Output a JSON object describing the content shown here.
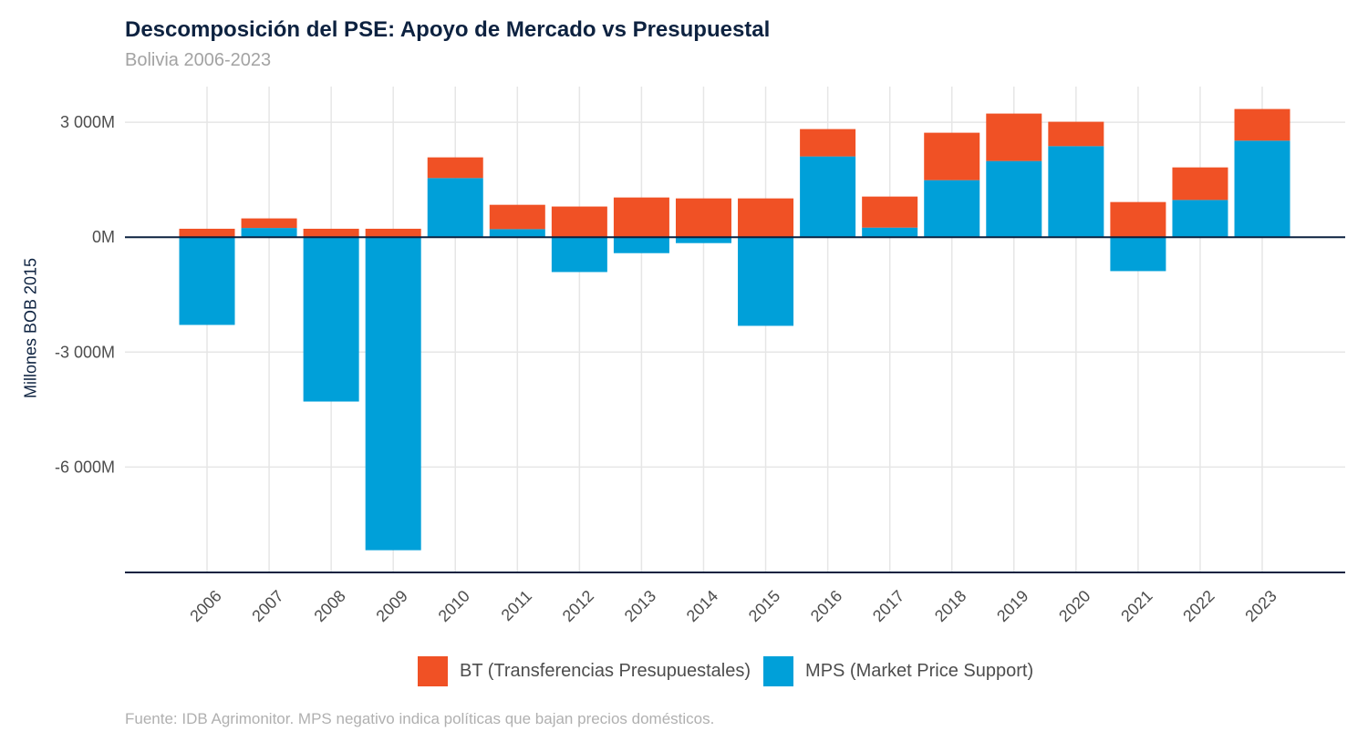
{
  "header": {
    "title": "Descomposición del PSE: Apoyo de Mercado vs Presupuestal",
    "subtitle": "Bolivia 2006-2023"
  },
  "caption": "Fuente: IDB Agrimonitor. MPS negativo indica políticas que bajan precios domésticos.",
  "colors": {
    "bt": "#f05125",
    "mps": "#00a0d9",
    "axis": "#0d2240",
    "grid": "#e6e6e6"
  },
  "chart_data": {
    "type": "bar",
    "stacked": true,
    "title": "Descomposición del PSE: Apoyo de Mercado vs Presupuestal",
    "subtitle": "Bolivia 2006-2023",
    "xlabel": "",
    "ylabel": "Millones BOB 2015",
    "ylim": [
      -8750,
      3930
    ],
    "yticks": [
      -6000,
      -3000,
      0,
      3000
    ],
    "ytick_labels": [
      "-6 000M",
      "-3 000M",
      "0M",
      "3 000M"
    ],
    "grid": true,
    "legend_position": "bottom",
    "categories": [
      "2006",
      "2007",
      "2008",
      "2009",
      "2010",
      "2011",
      "2012",
      "2013",
      "2014",
      "2015",
      "2016",
      "2017",
      "2018",
      "2019",
      "2020",
      "2021",
      "2022",
      "2023"
    ],
    "series": [
      {
        "name": "BT (Transferencias Presupuestales)",
        "key": "bt",
        "values": [
          220,
          250,
          220,
          220,
          540,
          635,
          800,
          1036,
          1012,
          1012,
          714,
          810,
          1238,
          1238,
          636,
          917,
          850,
          826
        ]
      },
      {
        "name": "MPS (Market Price Support)",
        "key": "mps",
        "values": [
          -2290,
          240,
          -4290,
          -8170,
          1543,
          210,
          -910,
          -417,
          -155,
          -2314,
          2107,
          250,
          1488,
          1988,
          2376,
          -886,
          971,
          2519
        ]
      }
    ]
  }
}
